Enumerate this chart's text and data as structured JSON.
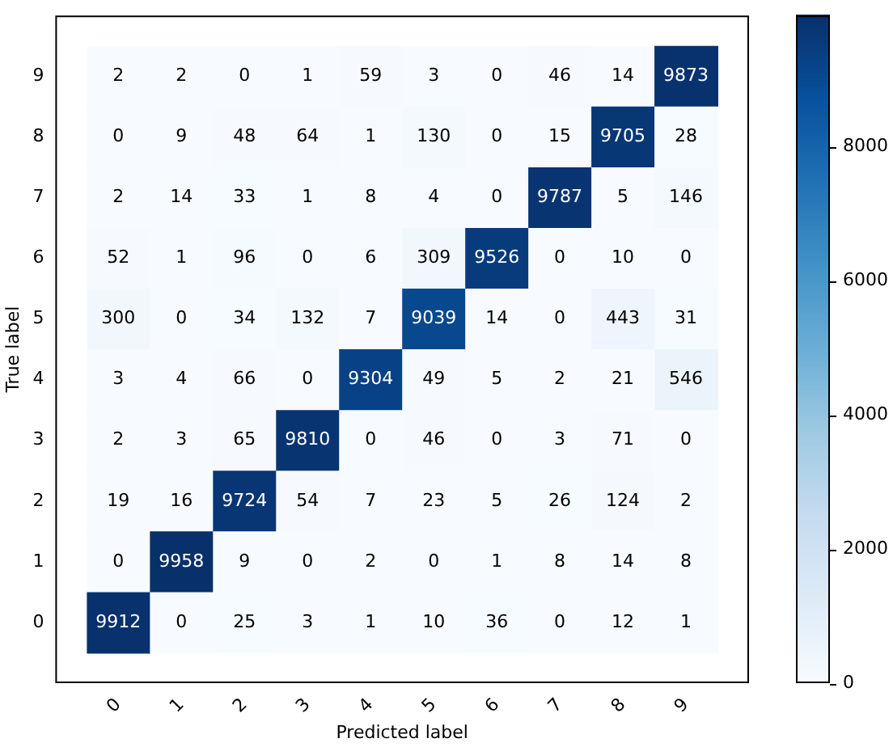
{
  "chart_data": {
    "type": "heatmap",
    "xlabel": "Predicted label",
    "ylabel": "True label",
    "categories": [
      "0",
      "1",
      "2",
      "3",
      "4",
      "5",
      "6",
      "7",
      "8",
      "9"
    ],
    "y_categories": [
      "9",
      "8",
      "7",
      "6",
      "5",
      "4",
      "3",
      "2",
      "1",
      "0"
    ],
    "cells": [
      [
        2,
        2,
        0,
        1,
        59,
        3,
        0,
        46,
        14,
        9873
      ],
      [
        0,
        9,
        48,
        64,
        1,
        130,
        0,
        15,
        9705,
        28
      ],
      [
        2,
        14,
        33,
        1,
        8,
        4,
        0,
        9787,
        5,
        146
      ],
      [
        52,
        1,
        96,
        0,
        6,
        309,
        9526,
        0,
        10,
        0
      ],
      [
        300,
        0,
        34,
        132,
        7,
        9039,
        14,
        0,
        443,
        31
      ],
      [
        3,
        4,
        66,
        0,
        9304,
        49,
        5,
        2,
        21,
        546
      ],
      [
        2,
        3,
        65,
        9810,
        0,
        46,
        0,
        3,
        71,
        0
      ],
      [
        19,
        16,
        9724,
        54,
        7,
        23,
        5,
        26,
        124,
        2
      ],
      [
        0,
        9958,
        9,
        0,
        2,
        0,
        1,
        8,
        14,
        8
      ],
      [
        9912,
        0,
        25,
        3,
        1,
        10,
        36,
        0,
        12,
        1
      ]
    ],
    "data_labels": true,
    "clim": [
      0,
      9958
    ],
    "cticks": [
      0,
      2000,
      4000,
      6000,
      8000
    ]
  }
}
